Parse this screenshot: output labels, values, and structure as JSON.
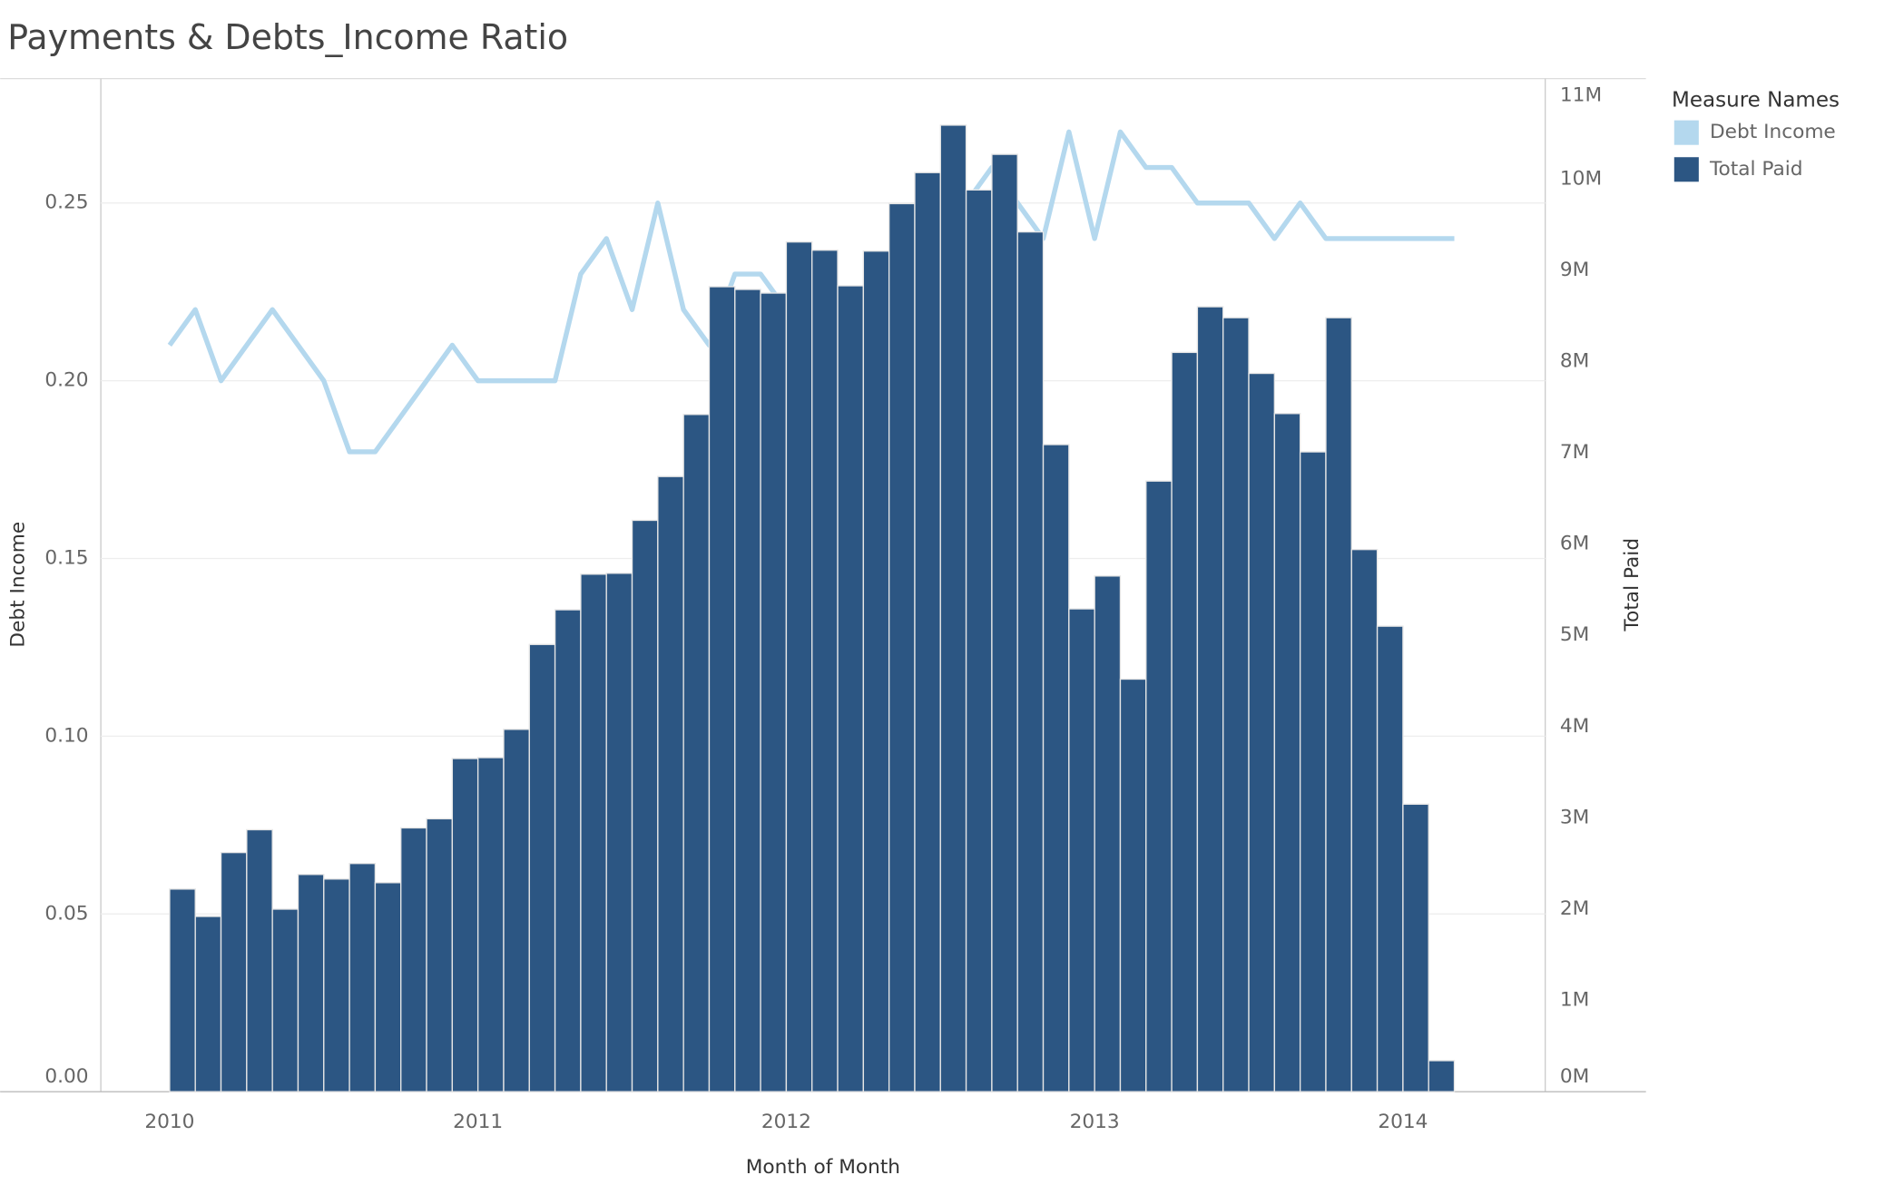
{
  "chart_data": {
    "type": "bar-line",
    "title": "Payments & Debts_Income Ratio",
    "x_label": "Month of Month",
    "y_label": "Debt Income",
    "y2_label": "Total Paid",
    "legend_title": "Measure Names",
    "legend": "right",
    "grid": true,
    "categories": [
      "2010",
      null,
      null,
      null,
      null,
      null,
      null,
      null,
      null,
      null,
      null,
      null,
      "2011",
      null,
      null,
      null,
      null,
      null,
      null,
      null,
      null,
      null,
      null,
      null,
      "2012",
      null,
      null,
      null,
      null,
      null,
      null,
      null,
      null,
      null,
      null,
      null,
      "2013",
      null,
      null,
      null,
      null,
      null,
      null,
      null,
      null,
      null,
      null,
      null,
      "2014",
      null,
      null
    ],
    "ylim": [
      0,
      0.285
    ],
    "yticks": [
      {
        "value": 0,
        "label": "0.00"
      },
      0.05,
      {
        "value": 0.1,
        "label": "0.10"
      },
      0.15,
      {
        "value": 0.2,
        "label": "0.20"
      },
      0.25
    ],
    "y2lim": [
      0,
      11100000
    ],
    "y2ticks": [
      {
        "value": 0,
        "label": "0M"
      },
      {
        "value": 1000000,
        "label": "1M"
      },
      {
        "value": 2000000,
        "label": "2M"
      },
      {
        "value": 3000000,
        "label": "3M"
      },
      {
        "value": 4000000,
        "label": "4M"
      },
      {
        "value": 5000000,
        "label": "5M"
      },
      {
        "value": 6000000,
        "label": "6M"
      },
      {
        "value": 7000000,
        "label": "7M"
      },
      {
        "value": 8000000,
        "label": "8M"
      },
      {
        "value": 9000000,
        "label": "9M"
      },
      {
        "value": 10000000,
        "label": "10M"
      },
      {
        "value": 11000000,
        "label": "11M"
      }
    ],
    "series": [
      {
        "name": "Debt Income",
        "type": "line",
        "color": "#b4d8ee",
        "values": [
          0.21,
          0.22,
          0.2,
          0.21,
          0.22,
          0.21,
          0.2,
          0.18,
          0.18,
          0.19,
          0.2,
          0.21,
          0.2,
          0.2,
          0.2,
          0.2,
          0.23,
          0.24,
          0.22,
          0.25,
          0.22,
          0.21,
          0.23,
          0.23,
          0.22,
          0.23,
          0.225,
          0.22,
          0.23,
          0.24,
          0.24,
          0.25,
          0.26,
          0.25,
          0.24,
          0.27,
          0.24,
          0.27,
          0.26,
          0.26,
          0.25,
          0.25,
          0.25,
          0.24,
          0.25,
          0.24,
          0.24,
          0.24,
          0.24,
          0.24,
          0.24
        ]
      },
      {
        "name": "Total Paid",
        "type": "bar",
        "axis": "y2",
        "color": "#2c5683",
        "values": [
          2220000,
          1920000,
          2620000,
          2870000,
          2000000,
          2380000,
          2330000,
          2500000,
          2290000,
          2890000,
          2990000,
          3650000,
          3660000,
          3970000,
          4900000,
          5280000,
          5670000,
          5680000,
          6260000,
          6740000,
          7420000,
          8820000,
          8790000,
          8750000,
          9310000,
          9220000,
          8830000,
          9210000,
          9730000,
          10070000,
          10590000,
          9880000,
          10270000,
          9420000,
          7090000,
          5290000,
          5650000,
          4520000,
          6690000,
          8100000,
          8600000,
          8480000,
          7870000,
          7430000,
          7010000,
          8480000,
          5940000,
          5100000,
          3150000,
          340000,
          null
        ]
      }
    ]
  }
}
